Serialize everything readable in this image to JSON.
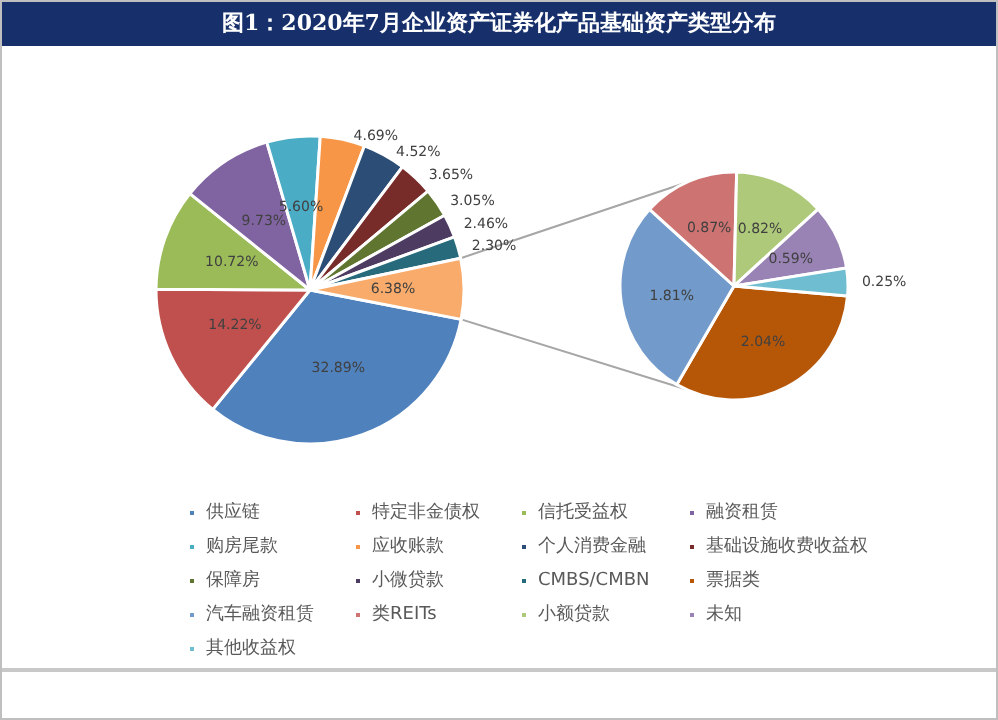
{
  "chart_data": [
    {
      "type": "pie",
      "title": "图1：2020年7月企业资产证券化产品基础资产类型分布",
      "legend": "bottom",
      "categories": [
        "供应链",
        "特定非金债权",
        "信托受益权",
        "融资租赁",
        "购房尾款",
        "应收账款",
        "个人消费金融",
        "基础设施收费收益权",
        "保障房",
        "小微贷款",
        "CMBS/CMBN",
        null
      ],
      "values": [
        32.89,
        14.22,
        10.72,
        9.73,
        5.6,
        4.69,
        4.52,
        3.65,
        3.05,
        2.46,
        2.3,
        6.38
      ],
      "colors": [
        "#4f81bd",
        "#c0504d",
        "#9bbb59",
        "#8064a2",
        "#4bacc6",
        "#f79646",
        "#2c4d75",
        "#772c2a",
        "#5f7530",
        "#4d3b62",
        "#276a7c",
        "#f9ab6b"
      ],
      "value_labels": [
        "32.89%",
        "14.22%",
        "10.72%",
        "9.73%",
        "5.60%",
        "4.69%",
        "4.52%",
        "3.65%",
        "3.05%",
        "2.46%",
        "2.30%",
        "6.38%"
      ]
    },
    {
      "type": "pie",
      "legend": "bottom",
      "categories": [
        "票据类",
        "汽车融资租赁",
        "类REITs",
        "小额贷款",
        "未知",
        "其他收益权"
      ],
      "values": [
        2.04,
        1.81,
        0.87,
        0.82,
        0.59,
        0.25
      ],
      "colors": [
        "#b65708",
        "#729aca",
        "#cd7371",
        "#afc97a",
        "#9983b5",
        "#6fbdd1"
      ],
      "value_labels": [
        "2.04%",
        "1.81%",
        "0.87%",
        "0.82%",
        "0.59%",
        "0.25%"
      ]
    }
  ]
}
